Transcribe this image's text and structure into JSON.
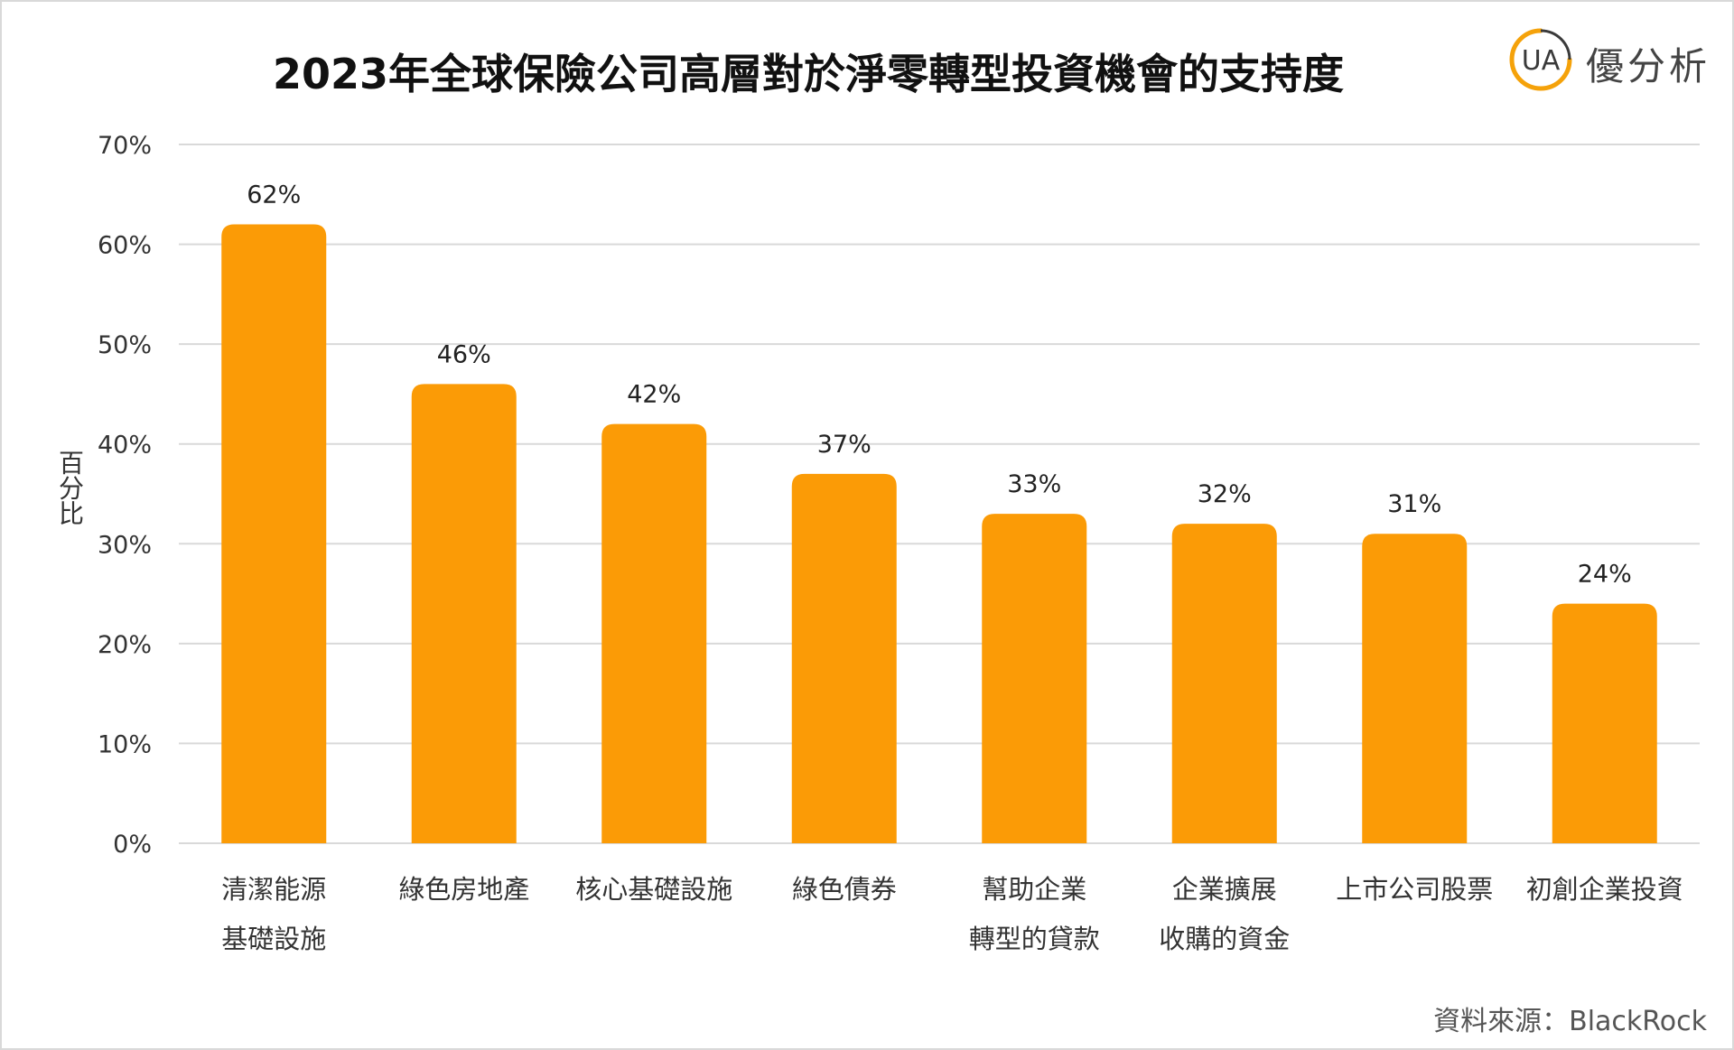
{
  "chart_data": {
    "type": "bar",
    "title": "2023年全球保險公司高層對於淨零轉型投資機會的支持度",
    "xlabel": "",
    "ylabel": "百分比",
    "ylim": [
      0,
      70
    ],
    "yticks": [
      "0%",
      "10%",
      "20%",
      "30%",
      "40%",
      "50%",
      "60%",
      "70%"
    ],
    "grid": true,
    "categories": [
      [
        "清潔能源",
        "基礎設施"
      ],
      [
        "綠色房地產"
      ],
      [
        "核心基礎設施"
      ],
      [
        "綠色債券"
      ],
      [
        "幫助企業",
        "轉型的貸款"
      ],
      [
        "企業擴展",
        "收購的資金"
      ],
      [
        "上市公司股票"
      ],
      [
        "初創企業投資"
      ]
    ],
    "values": [
      62,
      46,
      42,
      37,
      33,
      32,
      31,
      24
    ],
    "data_labels": [
      "62%",
      "46%",
      "42%",
      "37%",
      "33%",
      "32%",
      "31%",
      "24%"
    ],
    "bar_color": "#fb9b06",
    "grid_color": "#d9d9d9"
  },
  "logo": {
    "mark_text": "UA",
    "name": "優分析",
    "ring_color": "#f5a20a"
  },
  "source": "資料來源：BlackRock"
}
